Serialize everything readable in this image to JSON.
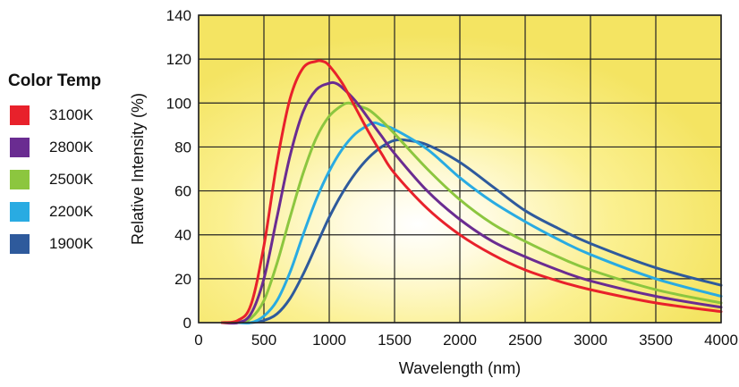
{
  "legend": {
    "title": "Color Temp",
    "items": [
      {
        "label": "3100K",
        "color": "#e8212b"
      },
      {
        "label": "2800K",
        "color": "#6a2c91"
      },
      {
        "label": "2500K",
        "color": "#8cc63f"
      },
      {
        "label": "2200K",
        "color": "#29abe2"
      },
      {
        "label": "1900K",
        "color": "#2e5a9c"
      }
    ]
  },
  "chart_data": {
    "type": "line",
    "xlabel": "Wavelength (nm)",
    "ylabel": "Relative Intensity (%)",
    "xlim": [
      0,
      4000
    ],
    "ylim": [
      0,
      140
    ],
    "xticks": [
      0,
      500,
      1000,
      1500,
      2000,
      2500,
      3000,
      3500,
      4000
    ],
    "yticks": [
      0,
      20,
      40,
      60,
      80,
      100,
      120,
      140
    ],
    "grid": true,
    "legend_position": "left",
    "series": [
      {
        "name": "3100K",
        "color": "#e8212b",
        "x": [
          180,
          300,
          400,
          500,
          600,
          700,
          800,
          900,
          950,
          1000,
          1100,
          1200,
          1300,
          1400,
          1500,
          1750,
          2000,
          2250,
          2500,
          2750,
          3000,
          3500,
          4000
        ],
        "y": [
          0,
          1,
          8,
          35,
          73,
          102,
          116,
          119,
          119,
          117,
          109,
          98,
          87,
          77,
          68,
          52,
          40,
          31,
          24,
          19,
          15,
          9,
          5
        ]
      },
      {
        "name": "2800K",
        "color": "#6a2c91",
        "x": [
          180,
          300,
          400,
          500,
          600,
          700,
          800,
          900,
          1000,
          1050,
          1100,
          1200,
          1300,
          1400,
          1500,
          1750,
          2000,
          2250,
          2500,
          2750,
          3000,
          3500,
          4000
        ],
        "y": [
          0,
          0,
          4,
          20,
          48,
          76,
          96,
          106,
          109,
          109,
          107,
          101,
          93,
          85,
          77,
          60,
          47,
          37,
          30,
          24,
          19,
          12,
          7
        ]
      },
      {
        "name": "2500K",
        "color": "#8cc63f",
        "x": [
          180,
          300,
          400,
          500,
          600,
          700,
          800,
          900,
          1000,
          1100,
          1150,
          1200,
          1300,
          1400,
          1500,
          1750,
          2000,
          2250,
          2500,
          2750,
          3000,
          3500,
          4000
        ],
        "y": [
          0,
          0,
          2,
          10,
          27,
          48,
          68,
          84,
          94,
          99,
          100,
          99,
          97,
          92,
          86,
          70,
          56,
          45,
          37,
          30,
          24,
          15,
          9
        ]
      },
      {
        "name": "2200K",
        "color": "#29abe2",
        "x": [
          180,
          300,
          400,
          500,
          600,
          700,
          800,
          900,
          1000,
          1100,
          1200,
          1300,
          1350,
          1400,
          1500,
          1750,
          2000,
          2250,
          2500,
          2750,
          3000,
          3500,
          4000
        ],
        "y": [
          0,
          0,
          0,
          3,
          10,
          23,
          40,
          56,
          69,
          79,
          86,
          90,
          91,
          90,
          88,
          79,
          66,
          55,
          46,
          38,
          31,
          20,
          12
        ]
      },
      {
        "name": "1900K",
        "color": "#2e5a9c",
        "x": [
          180,
          300,
          400,
          500,
          600,
          700,
          800,
          900,
          1000,
          1100,
          1200,
          1300,
          1400,
          1500,
          1600,
          1750,
          2000,
          2250,
          2500,
          2750,
          3000,
          3500,
          4000
        ],
        "y": [
          0,
          0,
          0,
          1,
          4,
          11,
          22,
          35,
          48,
          59,
          68,
          75,
          80,
          83,
          83,
          81,
          73,
          62,
          51,
          43,
          36,
          25,
          17
        ]
      }
    ]
  }
}
